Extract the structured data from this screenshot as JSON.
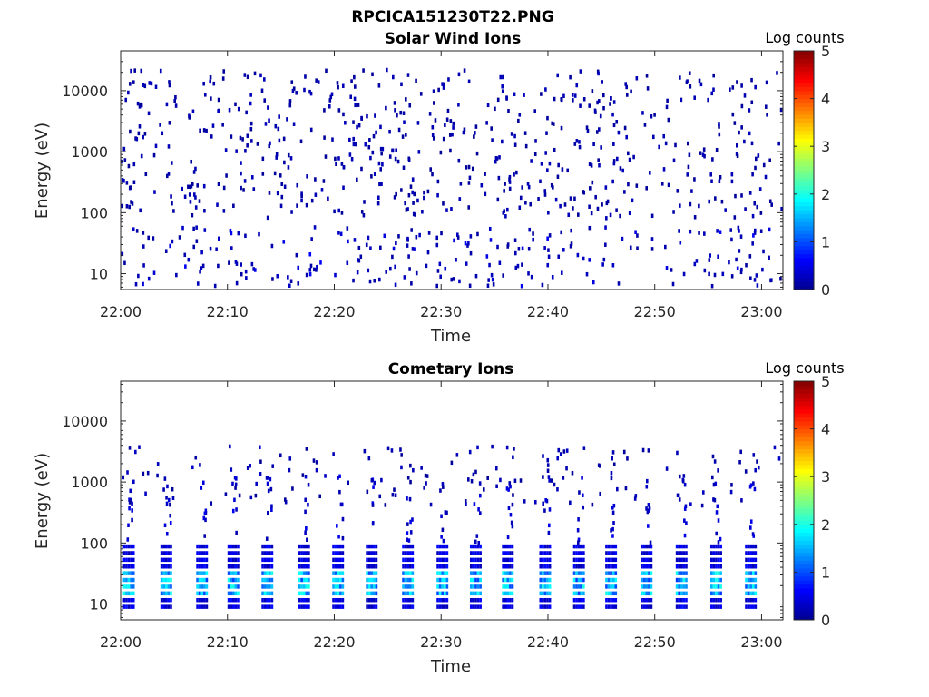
{
  "figure_title": "RPCICA151230T22.PNG",
  "colormap": [
    "#00008f",
    "#0000ff",
    "#007fff",
    "#00ffff",
    "#7fff7f",
    "#ffff00",
    "#ff7f00",
    "#ff0000",
    "#7f0000"
  ],
  "chart_data": [
    {
      "type": "heatmap",
      "title": "Solar Wind Ions",
      "xlabel": "Time",
      "ylabel": "Energy (eV)",
      "x_ticks": [
        "22:00",
        "22:10",
        "22:20",
        "22:30",
        "22:40",
        "22:50",
        "23:00"
      ],
      "y_ticks": [
        "10",
        "100",
        "1000",
        "10000"
      ],
      "y_scale": "log",
      "ylim": [
        5.5,
        45000
      ],
      "xlim_minutes": [
        0,
        62
      ],
      "colorbar": {
        "label": "Log counts",
        "ticks": [
          "0",
          "1",
          "2",
          "3",
          "4",
          "5"
        ],
        "range": [
          0,
          5
        ]
      },
      "pattern": "sparse scattered single counts at all energies, denser below 50 eV"
    },
    {
      "type": "heatmap",
      "title": "Cometary Ions",
      "xlabel": "Time",
      "ylabel": "Energy (eV)",
      "x_ticks": [
        "22:00",
        "22:10",
        "22:20",
        "22:30",
        "22:40",
        "22:50",
        "23:00"
      ],
      "y_ticks": [
        "10",
        "100",
        "1000",
        "10000"
      ],
      "y_scale": "log",
      "ylim": [
        5.5,
        45000
      ],
      "xlim_minutes": [
        0,
        62
      ],
      "colorbar": {
        "label": "Log counts",
        "ticks": [
          "0",
          "1",
          "2",
          "3",
          "4",
          "5"
        ],
        "range": [
          0,
          5
        ]
      },
      "pattern": "periodic bursts every ~3.2 min at 8-100 eV reaching log counts ~1-2, sparse counts near 1000 eV"
    }
  ]
}
